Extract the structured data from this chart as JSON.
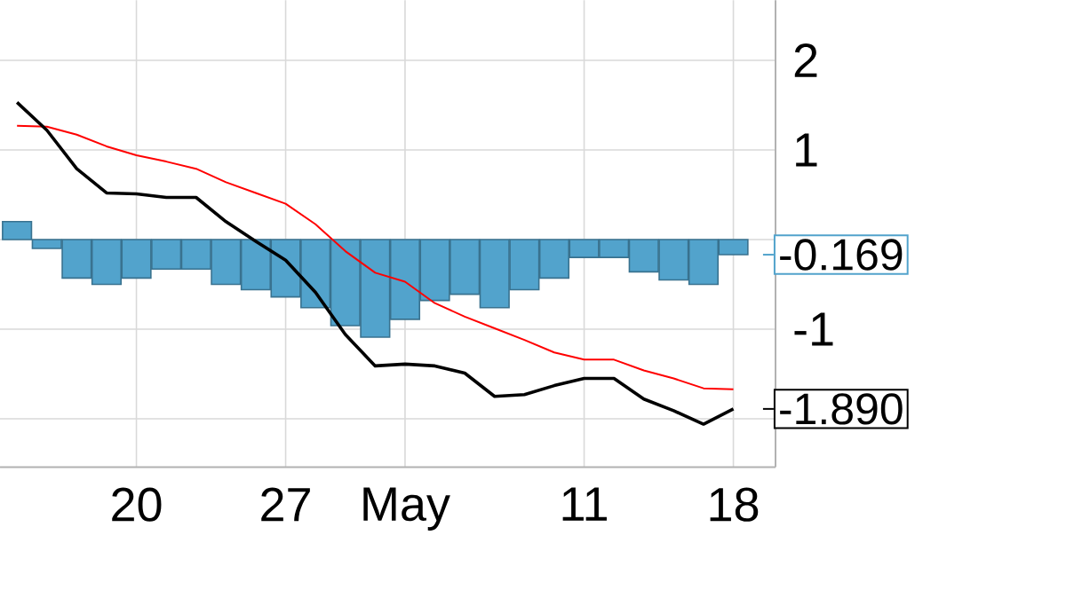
{
  "chart_data": {
    "type": "line",
    "categories": [
      null,
      null,
      null,
      null,
      "20",
      null,
      null,
      null,
      null,
      "27",
      null,
      null,
      null,
      "May",
      null,
      null,
      null,
      null,
      null,
      "11",
      null,
      null,
      null,
      null,
      "18"
    ],
    "series": [
      {
        "type": "bar",
        "color": "#52a3cc",
        "values": [
          0.2,
          -0.1,
          -0.43,
          -0.5,
          -0.43,
          -0.33,
          -0.33,
          -0.5,
          -0.56,
          -0.64,
          -0.76,
          -0.96,
          -1.09,
          -0.89,
          -0.68,
          -0.61,
          -0.76,
          -0.56,
          -0.43,
          -0.2,
          -0.2,
          -0.36,
          -0.45,
          -0.5,
          -0.169
        ]
      },
      {
        "color": "#ff0000",
        "values": [
          1.27,
          1.26,
          1.17,
          1.04,
          0.94,
          0.87,
          0.79,
          0.64,
          0.52,
          0.4,
          0.17,
          -0.13,
          -0.37,
          -0.47,
          -0.71,
          -0.86,
          -0.99,
          -1.12,
          -1.26,
          -1.34,
          -1.34,
          -1.46,
          -1.55,
          -1.66,
          -1.67
        ]
      },
      {
        "color": "#000000",
        "values": [
          1.53,
          1.22,
          0.79,
          0.52,
          0.51,
          0.47,
          0.47,
          0.2,
          -0.02,
          -0.23,
          -0.59,
          -1.06,
          -1.41,
          -1.39,
          -1.41,
          -1.49,
          -1.75,
          -1.73,
          -1.63,
          -1.55,
          -1.55,
          -1.78,
          -1.91,
          -2.06,
          -1.89
        ]
      }
    ],
    "ylim": [
      -2.54,
      2.67
    ],
    "yticks": [
      2,
      1,
      {
        "value": 0,
        "label": null
      },
      -1,
      {
        "value": -2,
        "label": null
      }
    ],
    "grid": true,
    "annotations": [
      {
        "text": "-0.169",
        "x": "18",
        "y": -0.169
      },
      {
        "text": "-1.890",
        "x": "18",
        "y": -1.89
      }
    ]
  }
}
